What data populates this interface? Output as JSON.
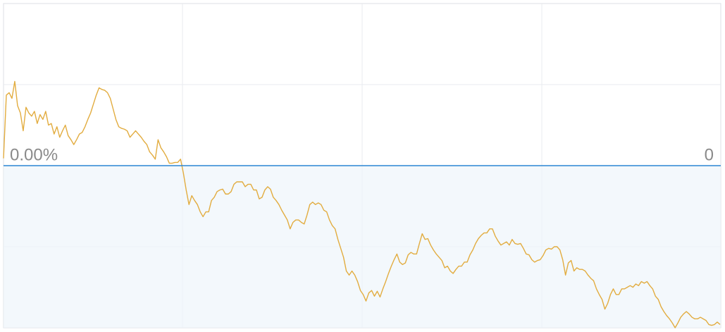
{
  "chart_data": {
    "type": "line",
    "values": [
      0.09,
      0.87,
      0.9,
      0.83,
      1.04,
      0.74,
      0.65,
      0.43,
      0.72,
      0.65,
      0.61,
      0.67,
      0.52,
      0.63,
      0.57,
      0.67,
      0.5,
      0.52,
      0.39,
      0.48,
      0.35,
      0.43,
      0.5,
      0.37,
      0.32,
      0.26,
      0.32,
      0.39,
      0.41,
      0.48,
      0.57,
      0.65,
      0.76,
      0.87,
      0.96,
      0.94,
      0.93,
      0.9,
      0.83,
      0.7,
      0.57,
      0.48,
      0.46,
      0.45,
      0.43,
      0.35,
      0.39,
      0.43,
      0.39,
      0.35,
      0.3,
      0.26,
      0.17,
      0.13,
      0.08,
      0.32,
      0.22,
      0.17,
      0.11,
      0.03,
      0.03,
      0.04,
      0.04,
      0.08,
      -0.09,
      -0.3,
      -0.48,
      -0.37,
      -0.43,
      -0.48,
      -0.57,
      -0.63,
      -0.57,
      -0.57,
      -0.43,
      -0.39,
      -0.32,
      -0.3,
      -0.29,
      -0.35,
      -0.35,
      -0.32,
      -0.23,
      -0.2,
      -0.2,
      -0.2,
      -0.26,
      -0.23,
      -0.23,
      -0.3,
      -0.3,
      -0.41,
      -0.39,
      -0.3,
      -0.26,
      -0.29,
      -0.39,
      -0.43,
      -0.48,
      -0.55,
      -0.61,
      -0.67,
      -0.78,
      -0.7,
      -0.67,
      -0.67,
      -0.7,
      -0.72,
      -0.61,
      -0.48,
      -0.45,
      -0.48,
      -0.46,
      -0.48,
      -0.55,
      -0.57,
      -0.67,
      -0.74,
      -0.78,
      -0.91,
      -1.02,
      -1.13,
      -1.3,
      -1.35,
      -1.3,
      -1.35,
      -1.43,
      -1.54,
      -1.59,
      -1.67,
      -1.57,
      -1.54,
      -1.61,
      -1.55,
      -1.62,
      -1.52,
      -1.43,
      -1.33,
      -1.24,
      -1.16,
      -1.09,
      -1.19,
      -1.22,
      -1.2,
      -1.1,
      -1.07,
      -1.09,
      -1.09,
      -0.96,
      -0.84,
      -0.91,
      -0.9,
      -0.98,
      -1.04,
      -1.09,
      -1.13,
      -1.17,
      -1.26,
      -1.24,
      -1.3,
      -1.33,
      -1.28,
      -1.24,
      -1.24,
      -1.19,
      -1.19,
      -1.1,
      -1.04,
      -0.96,
      -0.9,
      -0.86,
      -0.83,
      -0.83,
      -0.78,
      -0.78,
      -0.87,
      -0.93,
      -0.98,
      -0.96,
      -0.94,
      -0.98,
      -0.91,
      -0.96,
      -0.97,
      -0.96,
      -1.02,
      -1.09,
      -1.1,
      -1.16,
      -1.19,
      -1.17,
      -1.16,
      -1.11,
      -1.04,
      -1.02,
      -1.03,
      -1.0,
      -1.0,
      -1.04,
      -1.16,
      -1.35,
      -1.2,
      -1.17,
      -1.3,
      -1.26,
      -1.28,
      -1.28,
      -1.3,
      -1.35,
      -1.39,
      -1.42,
      -1.52,
      -1.59,
      -1.65,
      -1.77,
      -1.7,
      -1.59,
      -1.52,
      -1.59,
      -1.59,
      -1.52,
      -1.52,
      -1.5,
      -1.48,
      -1.5,
      -1.46,
      -1.48,
      -1.43,
      -1.45,
      -1.43,
      -1.48,
      -1.52,
      -1.61,
      -1.65,
      -1.74,
      -1.8,
      -1.85,
      -1.89,
      -1.94,
      -2.0,
      -1.94,
      -1.87,
      -1.83,
      -1.8,
      -1.83,
      -1.87,
      -1.89,
      -1.89,
      -1.87,
      -1.89,
      -1.91,
      -1.96,
      -1.97,
      -1.96,
      -1.93,
      -1.96
    ],
    "color": "#e2ac3f",
    "baseline_color": "#2b86d3",
    "ylim": [
      -2.0,
      2.0
    ],
    "yticks": [
      {
        "value": 0,
        "label": "0.00%"
      }
    ],
    "y2lim": [
      -2.0,
      2.0
    ],
    "y2ticks": [
      0
    ]
  }
}
